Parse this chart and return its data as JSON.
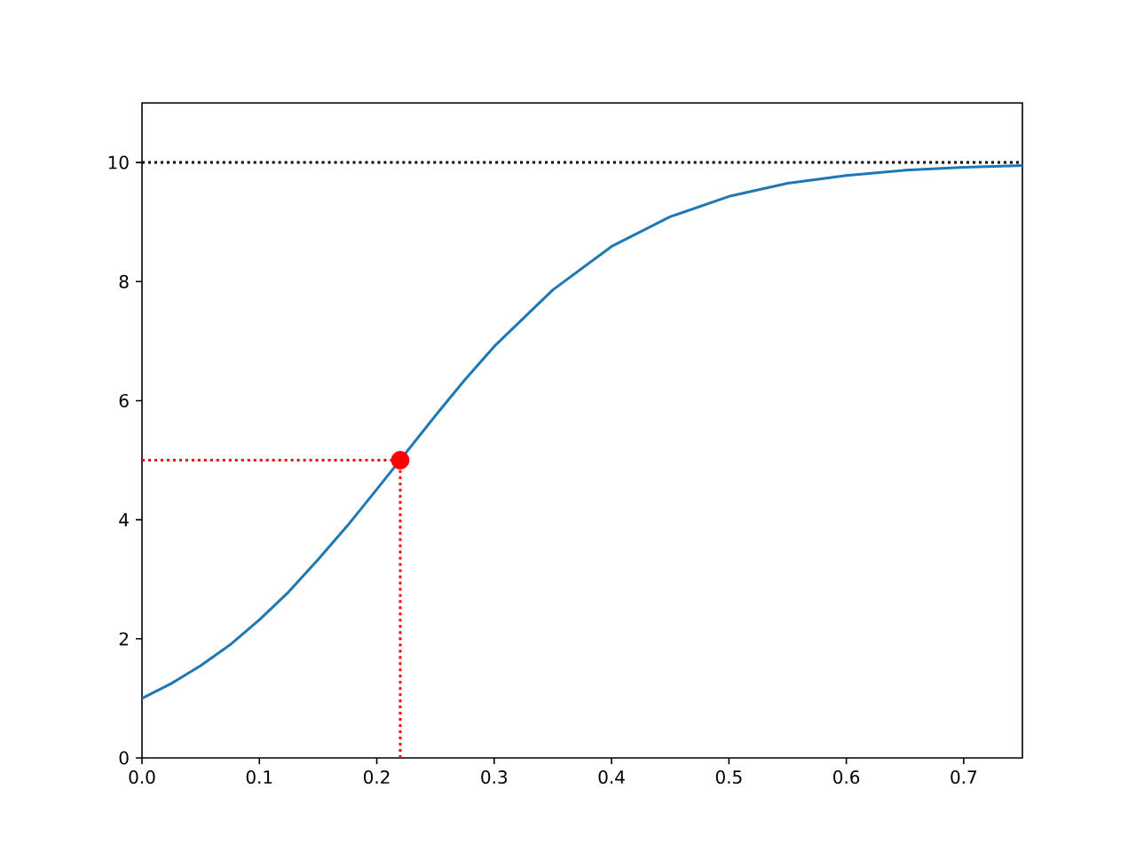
{
  "chart_data": {
    "type": "line",
    "xlim": [
      0,
      0.75
    ],
    "ylim": [
      0,
      11
    ],
    "xticks": [
      {
        "value": 0,
        "label": "0.0"
      },
      0.1,
      0.2,
      0.3,
      0.4,
      0.5,
      0.6,
      0.7
    ],
    "yticks": [
      0,
      2,
      4,
      6,
      8,
      10
    ],
    "ref_lines": [
      {
        "axis": "y",
        "value": 10,
        "color": "#000000",
        "line_style": "dotted"
      }
    ],
    "series": [
      {
        "color": "#1f77b4",
        "x": [
          0,
          0.025,
          0.05,
          0.075,
          0.1,
          0.125,
          0.15,
          0.175,
          0.2,
          0.225,
          0.25,
          0.275,
          0.3,
          0.35,
          0.4,
          0.45,
          0.5,
          0.55,
          0.6,
          0.65,
          0.7,
          0.75
        ],
        "values": [
          1.0,
          1.25,
          1.55,
          1.9,
          2.32,
          2.79,
          3.33,
          3.9,
          4.51,
          5.13,
          5.75,
          6.35,
          6.91,
          7.86,
          8.59,
          9.09,
          9.43,
          9.65,
          9.78,
          9.87,
          9.92,
          9.95
        ]
      },
      {
        "color": "#ff0000",
        "line_style": "dotted",
        "x": [
          0,
          0.22
        ],
        "values": [
          5,
          5
        ]
      },
      {
        "color": "#ff0000",
        "line_style": "dotted",
        "x": [
          0.22,
          0.22
        ],
        "values": [
          0,
          5
        ]
      },
      {
        "type": "scatter",
        "color": "#ff0000",
        "marker": "circle",
        "x": [
          0.22
        ],
        "values": [
          5
        ]
      }
    ]
  }
}
